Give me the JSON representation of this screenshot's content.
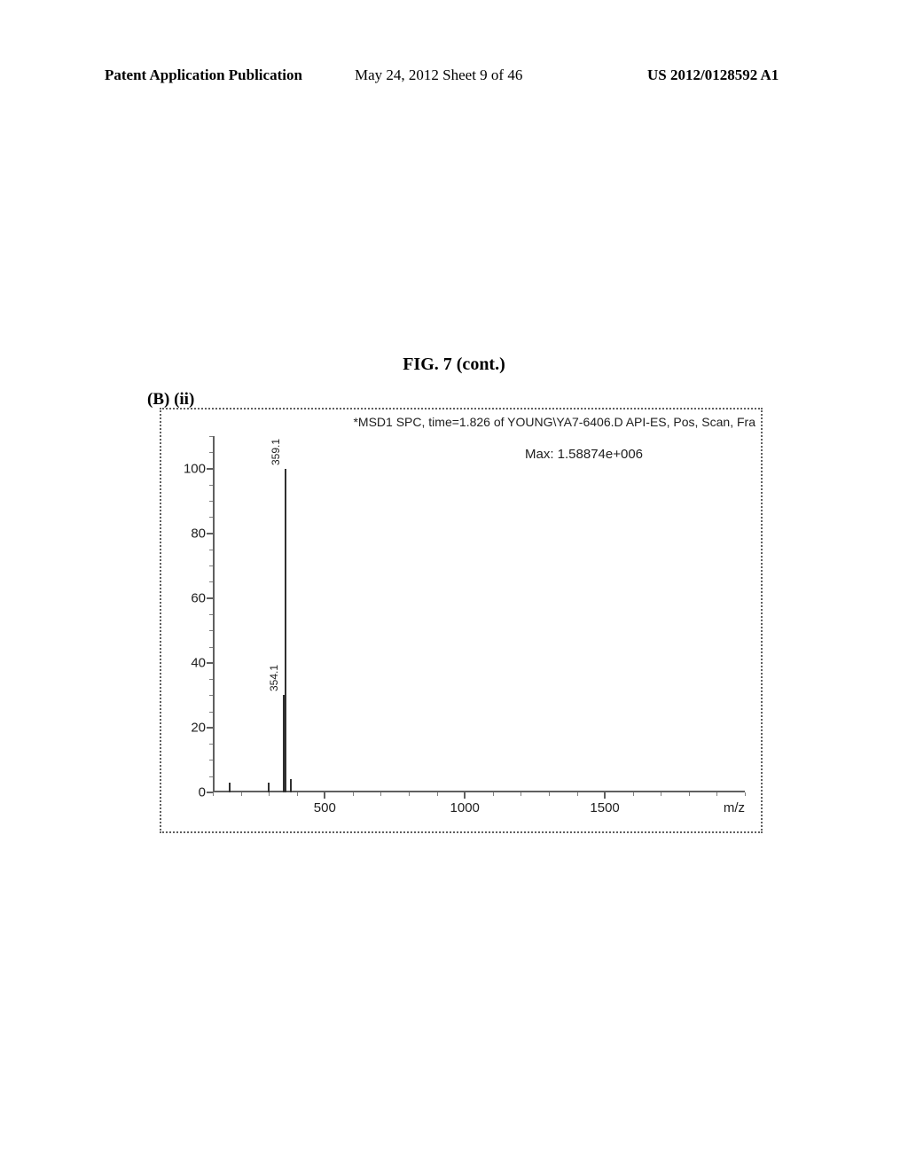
{
  "header": {
    "left": "Patent Application Publication",
    "center": "May 24, 2012  Sheet 9 of 46",
    "right": "US 2012/0128592 A1"
  },
  "figure": {
    "title": "FIG. 7 (cont.)",
    "panel_label": "(B) (ii)"
  },
  "chart": {
    "type": "mass-spectrum",
    "inner_title": "*MSD1 SPC, time=1.826 of YOUNG\\YA7-6406.D  API-ES, Pos, Scan, Fra",
    "max_label": "Max: 1.58874e+006",
    "background_color": "#ffffff",
    "border_color": "#606060",
    "axis_color": "#606060",
    "text_color": "#202020",
    "peak_color": "#303030",
    "label_fontsize": 15,
    "peak_label_fontsize": 12,
    "x_axis": {
      "unit_label": "m/z",
      "min": 100,
      "max": 2000,
      "major_ticks": [
        500,
        1000,
        1500
      ],
      "minor_step": 100
    },
    "y_axis": {
      "min": 0,
      "max": 110,
      "major_ticks": [
        0,
        20,
        40,
        60,
        80,
        100
      ],
      "minor_step": 5
    },
    "peaks": [
      {
        "mz": 359.1,
        "intensity": 100,
        "label": "359.1",
        "show_label": true
      },
      {
        "mz": 354.1,
        "intensity": 30,
        "label": "354.1",
        "show_label": true
      },
      {
        "mz": 160,
        "intensity": 3,
        "label": "",
        "show_label": false
      },
      {
        "mz": 300,
        "intensity": 3,
        "label": "",
        "show_label": false
      },
      {
        "mz": 380,
        "intensity": 4,
        "label": "",
        "show_label": false
      }
    ]
  }
}
